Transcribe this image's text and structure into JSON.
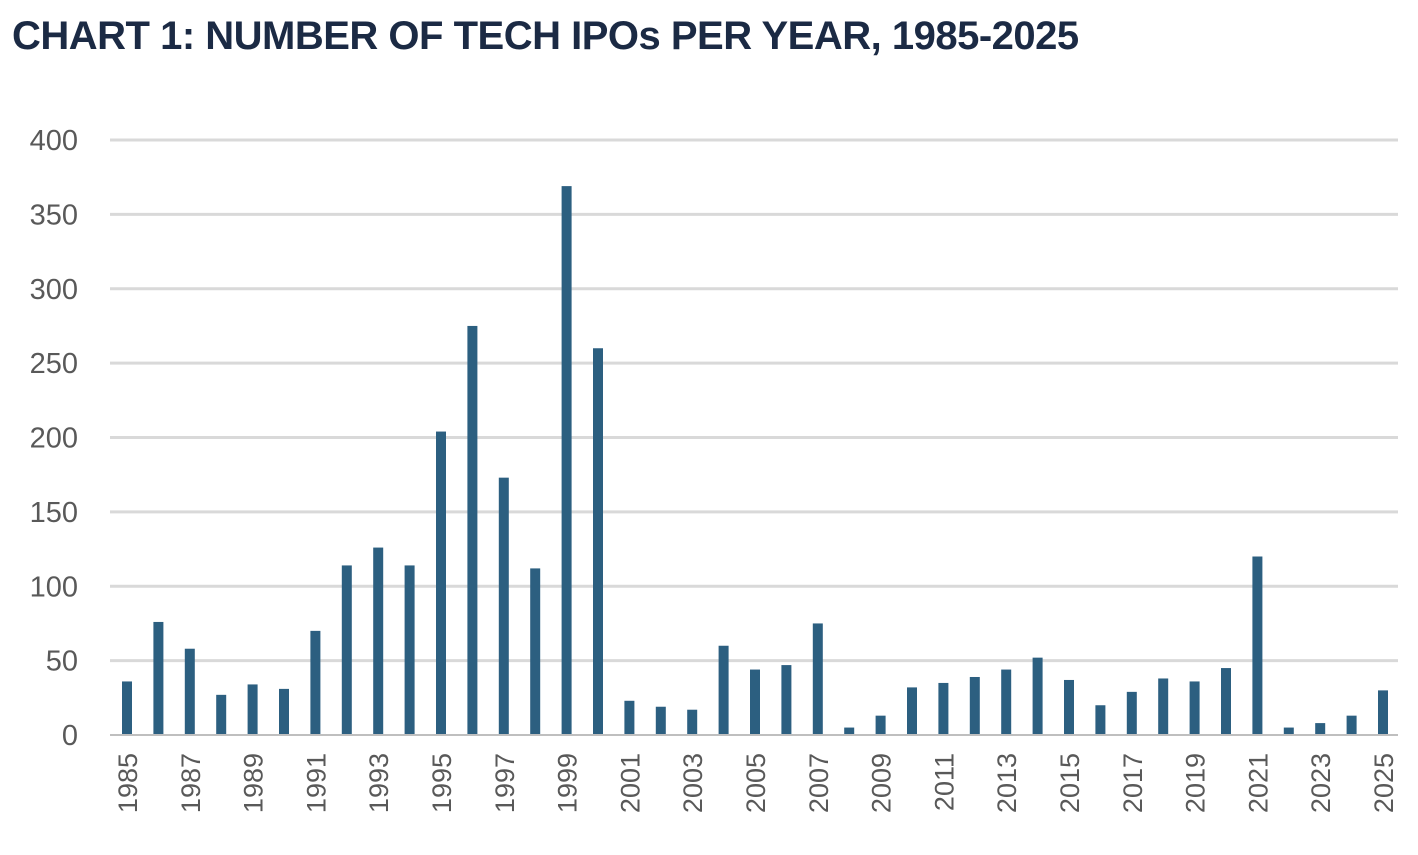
{
  "chart_data": {
    "type": "bar",
    "title": "CHART 1: NUMBER OF TECH IPOs PER YEAR, 1985-2025",
    "xlabel": "",
    "ylabel": "",
    "ylim": [
      0,
      400
    ],
    "yticks": [
      0,
      50,
      100,
      150,
      200,
      250,
      300,
      350,
      400
    ],
    "grid": true,
    "legend": "none",
    "colors": {
      "bar": "#2c5f80",
      "grid": "#d9d9d9",
      "axis": "#bfbfbf"
    },
    "categories": [
      "1985",
      "1986",
      "1987",
      "1988",
      "1989",
      "1990",
      "1991",
      "1992",
      "1993",
      "1994",
      "1995",
      "1996",
      "1997",
      "1998",
      "1999",
      "2000",
      "2001",
      "2002",
      "2003",
      "2004",
      "2005",
      "2006",
      "2007",
      "2008",
      "2009",
      "2010",
      "2011",
      "2012",
      "2013",
      "2014",
      "2015",
      "2016",
      "2017",
      "2018",
      "2019",
      "2020",
      "2021",
      "2022",
      "2023",
      "2024",
      "2025"
    ],
    "tick_labels_shown": [
      "1985",
      "1987",
      "1989",
      "1991",
      "1993",
      "1995",
      "1997",
      "1999",
      "2001",
      "2003",
      "2005",
      "2007",
      "2009",
      "2011",
      "2013",
      "2015",
      "2017",
      "2019",
      "2021",
      "2023",
      "2025"
    ],
    "values": [
      36,
      76,
      58,
      27,
      34,
      31,
      70,
      114,
      126,
      114,
      204,
      275,
      173,
      112,
      369,
      260,
      23,
      19,
      17,
      60,
      44,
      47,
      75,
      5,
      13,
      32,
      35,
      39,
      44,
      52,
      37,
      20,
      29,
      38,
      36,
      45,
      120,
      5,
      8,
      13,
      30
    ]
  }
}
